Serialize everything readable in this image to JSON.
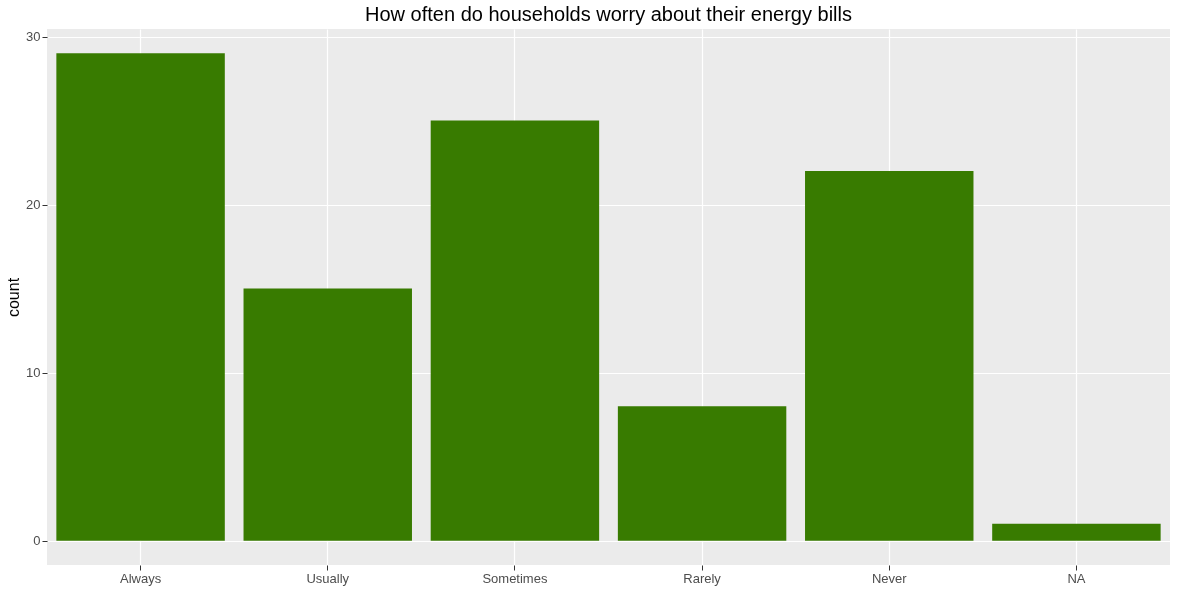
{
  "chart_data": {
    "type": "bar",
    "title": "How often do households worry about their energy bills",
    "ylabel": "count",
    "categories": [
      "Always",
      "Usually",
      "Sometimes",
      "Rarely",
      "Never",
      "NA"
    ],
    "values": [
      29,
      15,
      25,
      8,
      22,
      1
    ],
    "color": "#387b00",
    "ylim": [
      -1.45,
      30.45
    ],
    "yticks": [
      0,
      10,
      20,
      30
    ],
    "grid": true
  }
}
